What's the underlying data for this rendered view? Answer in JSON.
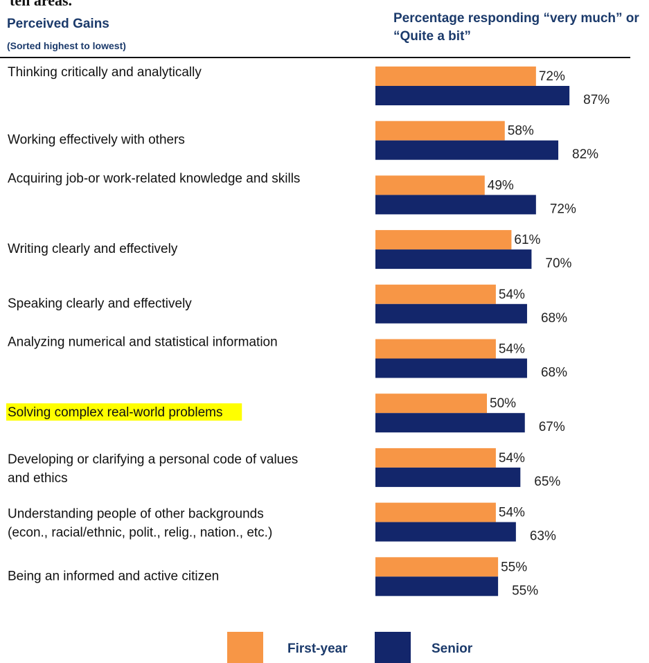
{
  "header": {
    "fragment": "ten areas.",
    "left_title": "Perceived Gains",
    "left_subtitle": "(Sorted highest to lowest)",
    "right_title": "Percentage responding “very much” or “Quite a bit”"
  },
  "colors": {
    "first_year": "#f79646",
    "senior": "#13266b",
    "highlight": "#ffff00",
    "label": "#111111",
    "value_label": "#222222"
  },
  "legend": {
    "first_year": "First-year",
    "senior": "Senior"
  },
  "chart_data": {
    "type": "bar",
    "orientation": "horizontal",
    "categories": [
      [
        "Thinking critically and analytically"
      ],
      [
        "Working effectively with others"
      ],
      [
        "Acquiring job-or work-related knowledge and skills"
      ],
      [
        "Writing clearly and effectively"
      ],
      [
        "Speaking clearly and effectively"
      ],
      [
        "Analyzing numerical and statistical information"
      ],
      [
        "Solving complex real-world problems"
      ],
      [
        "Developing or clarifying a personal code of values",
        "and ethics"
      ],
      [
        "Understanding people of other backgrounds",
        "(econ., racial/ethnic, polit., relig., nation., etc.)"
      ],
      [
        "Being an informed and active citizen"
      ]
    ],
    "highlighted_category_index": 6,
    "series": [
      {
        "name": "First-year",
        "values": [
          72,
          58,
          49,
          61,
          54,
          54,
          50,
          54,
          54,
          55
        ],
        "labels": [
          "72%",
          "58%",
          "49%",
          "61%",
          "54%",
          "54%",
          "50%",
          "54%",
          "54%",
          "55%"
        ]
      },
      {
        "name": "Senior",
        "values": [
          87,
          82,
          72,
          70,
          68,
          68,
          67,
          65,
          63,
          55
        ],
        "labels": [
          "87%",
          "82%",
          "72%",
          "70%",
          "68%",
          "68%",
          "67%",
          "65%",
          "63%",
          "55%"
        ]
      }
    ],
    "xlim": [
      0,
      100
    ],
    "legend_position": "bottom",
    "grid": false
  }
}
